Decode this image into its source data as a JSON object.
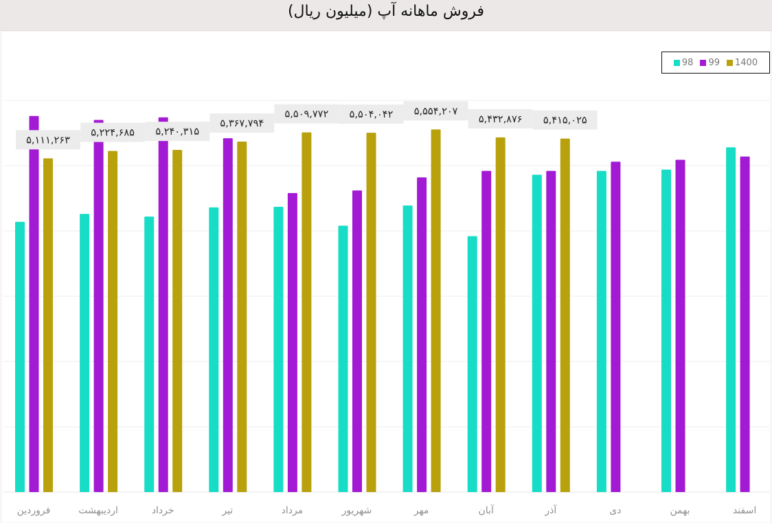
{
  "title": "فروش ماهانه آپ (میلیون ریال)",
  "chart_data": {
    "type": "bar",
    "title": "فروش ماهانه آپ (میلیون ریال)",
    "xlabel": "",
    "ylabel": "",
    "grid": true,
    "legend_position": "top-right",
    "ylim": [
      0,
      6000000
    ],
    "categories": [
      "فروردین",
      "اردیبهشت",
      "خرداد",
      "تیر",
      "مرداد",
      "شهریور",
      "مهر",
      "آبان",
      "آذر",
      "دی",
      "بهمن",
      "اسفند"
    ],
    "series": [
      {
        "name": "98",
        "color": "#17dcc6",
        "values": [
          4140000,
          4260000,
          4220000,
          4360000,
          4370000,
          4080000,
          4390000,
          3920000,
          4860000,
          4920000,
          4940000,
          5280000
        ]
      },
      {
        "name": "99",
        "color": "#a21ad4",
        "values": [
          5760000,
          5700000,
          5740000,
          5420000,
          4580000,
          4620000,
          4820000,
          4920000,
          4920000,
          5060000,
          5090000,
          5140000
        ]
      },
      {
        "name": "1400",
        "color": "#b8a10c",
        "values": [
          5111263,
          5224685,
          5240315,
          5367794,
          5509772,
          5504042,
          5554207,
          5432876,
          5415025,
          null,
          null,
          null
        ]
      }
    ],
    "data_labels": [
      "۵,۱۱۱,۲۶۳",
      "۵,۲۲۴,۶۸۵",
      "۵,۲۴۰,۳۱۵",
      "۵,۳۶۷,۷۹۴",
      "۵,۵۰۹,۷۷۲",
      "۵,۵۰۴,۰۴۲",
      "۵,۵۵۴,۲۰۷",
      "۵,۴۳۲,۸۷۶",
      "۵,۴۱۵,۰۲۵"
    ]
  }
}
